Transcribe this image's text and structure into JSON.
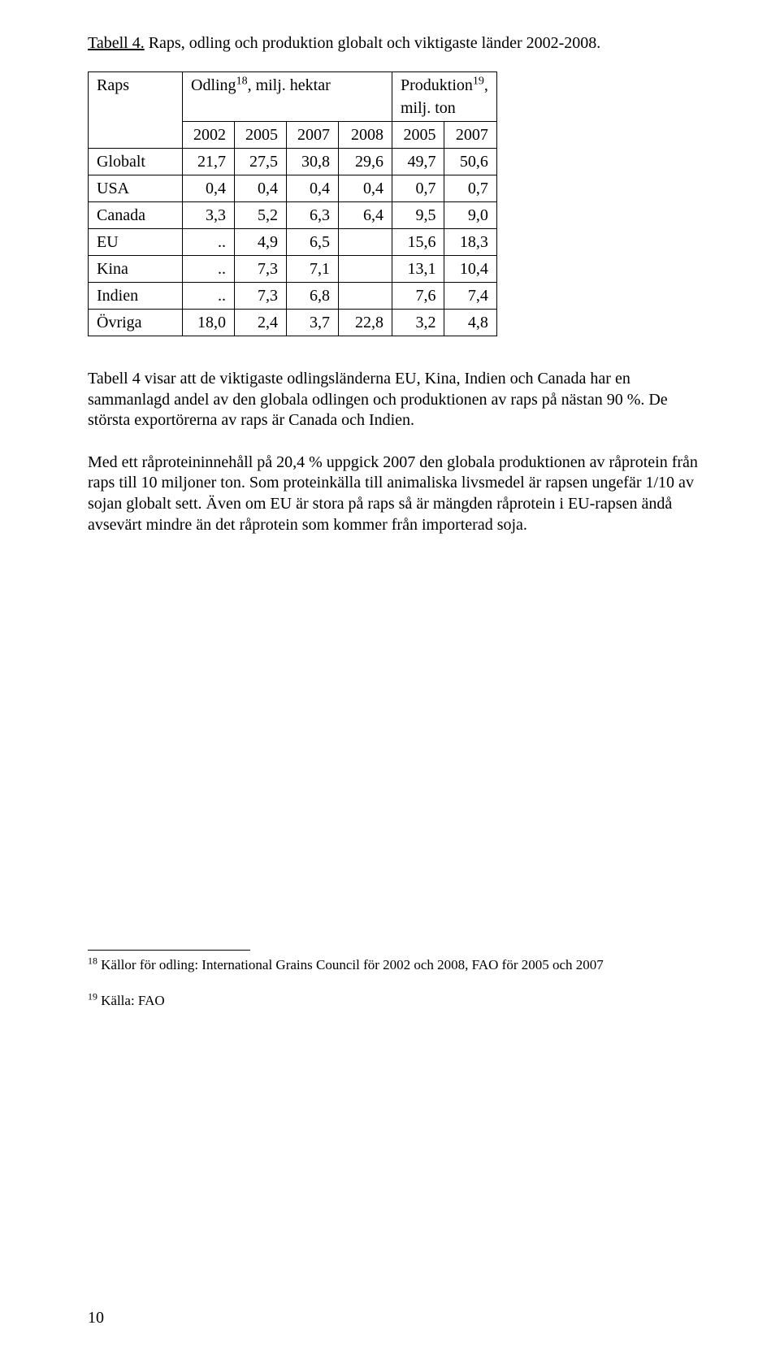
{
  "title": {
    "underlined": "Tabell 4.",
    "rest": " Raps, odling och produktion globalt och viktigaste länder 2002-2008."
  },
  "table": {
    "top_left": "Raps",
    "col_group_1": {
      "label": "Odling",
      "sup": "18",
      "suffix": ", milj. hektar"
    },
    "col_group_2": {
      "label": "Produktion",
      "sup": "19",
      "suffix": ", milj. ton"
    },
    "year_row": [
      "2002",
      "2005",
      "2007",
      "2008",
      "2005",
      "2007"
    ],
    "rows": [
      {
        "label": "Globalt",
        "cells": [
          "21,7",
          "27,5",
          "30,8",
          "29,6",
          "49,7",
          "50,6"
        ]
      },
      {
        "label": "USA",
        "cells": [
          "0,4",
          "0,4",
          "0,4",
          "0,4",
          "0,7",
          "0,7"
        ]
      },
      {
        "label": "Canada",
        "cells": [
          "3,3",
          "5,2",
          "6,3",
          "6,4",
          "9,5",
          "9,0"
        ]
      },
      {
        "label": "EU",
        "cells": [
          "..",
          "4,9",
          "6,5",
          "",
          "15,6",
          "18,3"
        ]
      },
      {
        "label": "Kina",
        "cells": [
          "..",
          "7,3",
          "7,1",
          "",
          "13,1",
          "10,4"
        ]
      },
      {
        "label": "Indien",
        "cells": [
          "..",
          "7,3",
          "6,8",
          "",
          "7,6",
          "7,4"
        ]
      },
      {
        "label": "Övriga",
        "cells": [
          "18,0",
          "2,4",
          "3,7",
          "22,8",
          "3,2",
          "4,8"
        ]
      }
    ]
  },
  "paragraphs": {
    "p1": "Tabell 4 visar att de viktigaste odlingsländerna EU, Kina, Indien och Canada har en sammanlagd andel av den globala odlingen och produktionen av raps på nästan 90 %. De största exportörerna av raps är Canada och Indien.",
    "p2": "Med ett råproteininnehåll på 20,4 % uppgick 2007 den globala produktionen av råprotein från raps till 10 miljoner ton. Som proteinkälla till animaliska livsmedel är rapsen ungefär 1/10 av sojan globalt sett. Även om EU är stora på raps så är mängden råprotein i EU-rapsen ändå avsevärt mindre än det råprotein som kommer från importerad soja."
  },
  "footnotes": {
    "fn18_sup": "18",
    "fn18_text": " Källor för odling: International Grains Council för 2002 och 2008, FAO för 2005 och 2007",
    "fn19_sup": "19",
    "fn19_text": " Källa: FAO"
  },
  "page_number": "10"
}
